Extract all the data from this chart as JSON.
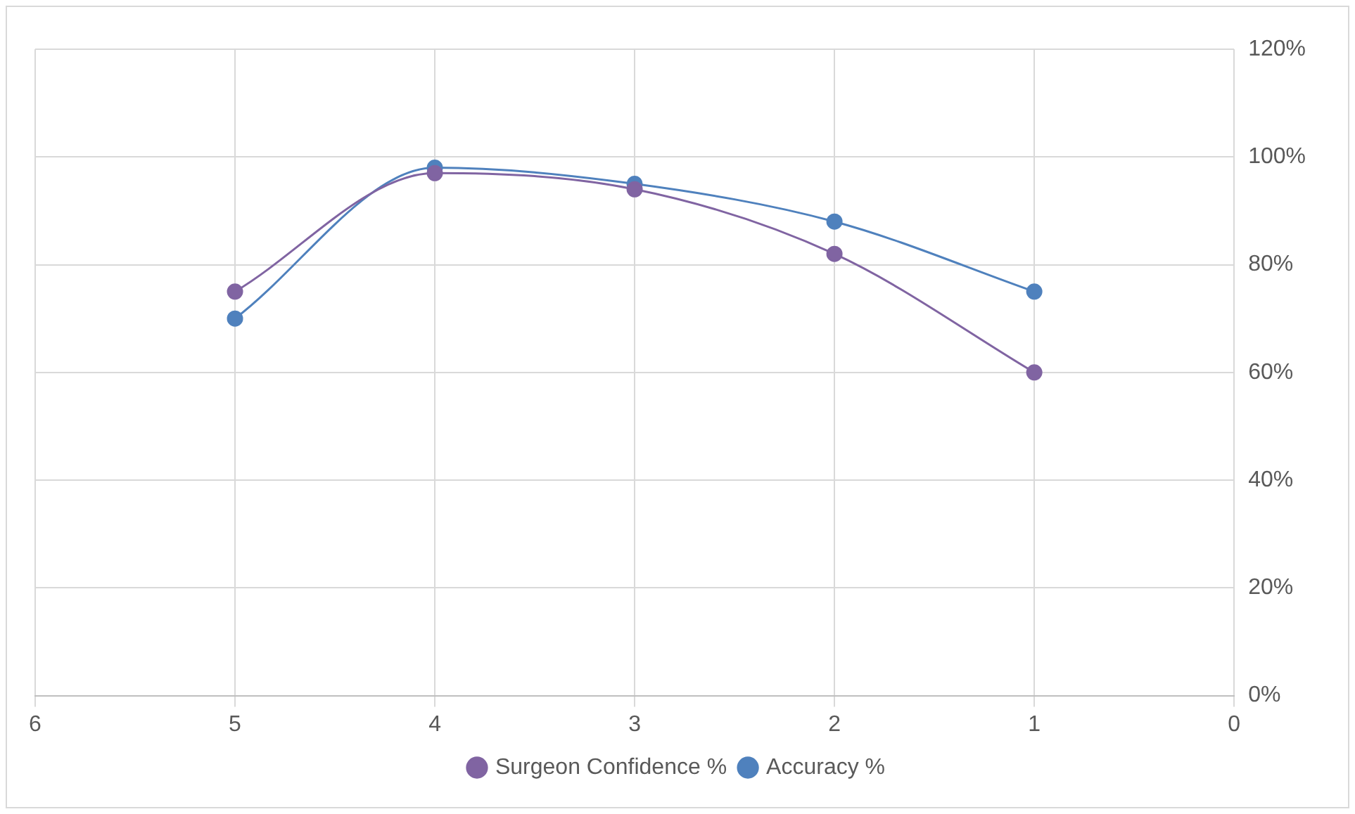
{
  "chart_data": {
    "type": "line",
    "x": [
      5,
      4,
      3,
      2,
      1
    ],
    "series": [
      {
        "name": "Accuracy %",
        "color": "#4f81bd",
        "values": [
          70,
          98,
          95,
          88,
          75
        ]
      },
      {
        "name": "Surgeon Confidence %",
        "color": "#8064a2",
        "values": [
          75,
          97,
          94,
          82,
          60
        ]
      }
    ],
    "xlim": [
      6,
      0
    ],
    "xticks": [
      6,
      5,
      4,
      3,
      2,
      1,
      0
    ],
    "ylim": [
      0,
      120
    ],
    "yticks": [
      {
        "value": 0,
        "label": "0%"
      },
      {
        "value": 20,
        "label": "20%"
      },
      {
        "value": 40,
        "label": "40%"
      },
      {
        "value": 60,
        "label": "60%"
      },
      {
        "value": 80,
        "label": "80%"
      },
      {
        "value": 100,
        "label": "100%"
      },
      {
        "value": 120,
        "label": "120%"
      }
    ],
    "grid": true,
    "legend": "bottom",
    "marker": "circle",
    "line_style": "solid"
  }
}
